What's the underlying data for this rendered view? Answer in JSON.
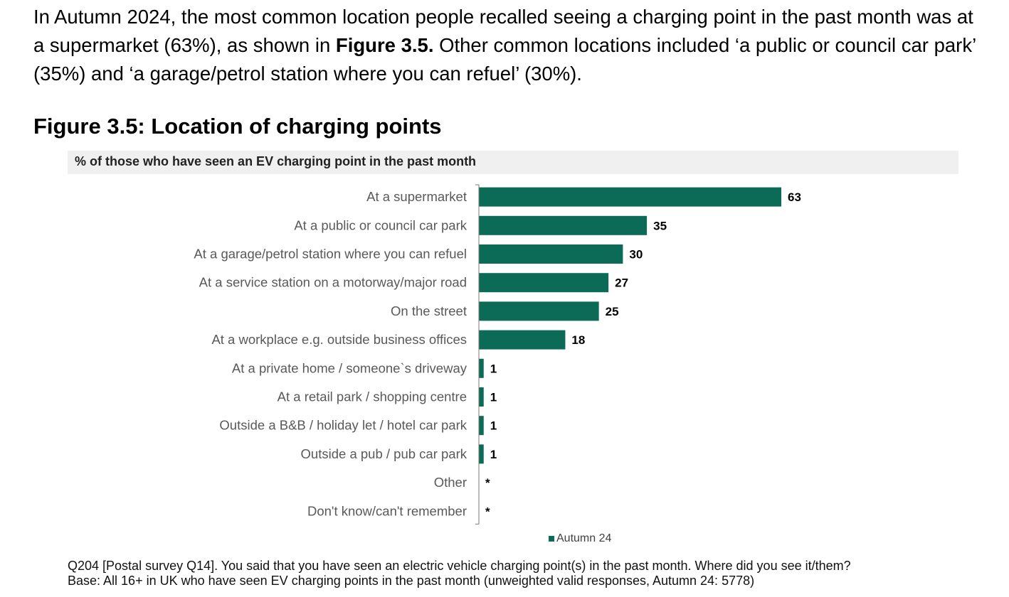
{
  "intro": {
    "part1": "In Autumn 2024, the most common location people recalled seeing a charging point in the past month was at a supermarket (63%), as shown in ",
    "figure_ref": "Figure 3.5.",
    "part2": " Other common locations included ‘a public or council car park’ (35%) and ‘a garage/petrol station where you can refuel’ (30%)."
  },
  "figure_title": "Figure 3.5: Location of charging points",
  "colors": {
    "bar": "#0b6b57",
    "axis": "#7a7a7a",
    "subtitle_bg": "#f0f0f0"
  },
  "chart_data": {
    "type": "bar",
    "orientation": "horizontal",
    "title": "% of those who have seen an EV charging point in the past month",
    "xlabel": "",
    "ylabel": "",
    "xlim": [
      0,
      63
    ],
    "grid": false,
    "legend_position": "bottom-center",
    "categories": [
      "At a supermarket",
      "At a public or council car park",
      "At a garage/petrol station where you can refuel",
      "At a service station on a motorway/major road",
      "On the street",
      "At a workplace e.g. outside business offices",
      "At a private home / someone`s driveway",
      "At a retail park / shopping centre",
      "Outside a B&B / holiday let / hotel car park",
      "Outside a pub / pub car park",
      "Other",
      "Don't know/can't remember"
    ],
    "series": [
      {
        "name": "Autumn 24",
        "values": [
          63,
          35,
          30,
          27,
          25,
          18,
          1,
          1,
          1,
          1,
          0,
          0
        ],
        "labels": [
          "63",
          "35",
          "30",
          "27",
          "25",
          "18",
          "1",
          "1",
          "1",
          "1",
          "*",
          "*"
        ]
      }
    ]
  },
  "notes": {
    "question": "Q204 [Postal survey Q14]. You said that you have seen an electric vehicle charging point(s) in the past month. Where did you see it/them?",
    "base": "Base: All 16+ in UK who have seen EV charging points in the past month (unweighted valid responses, Autumn 24: 5778)"
  }
}
